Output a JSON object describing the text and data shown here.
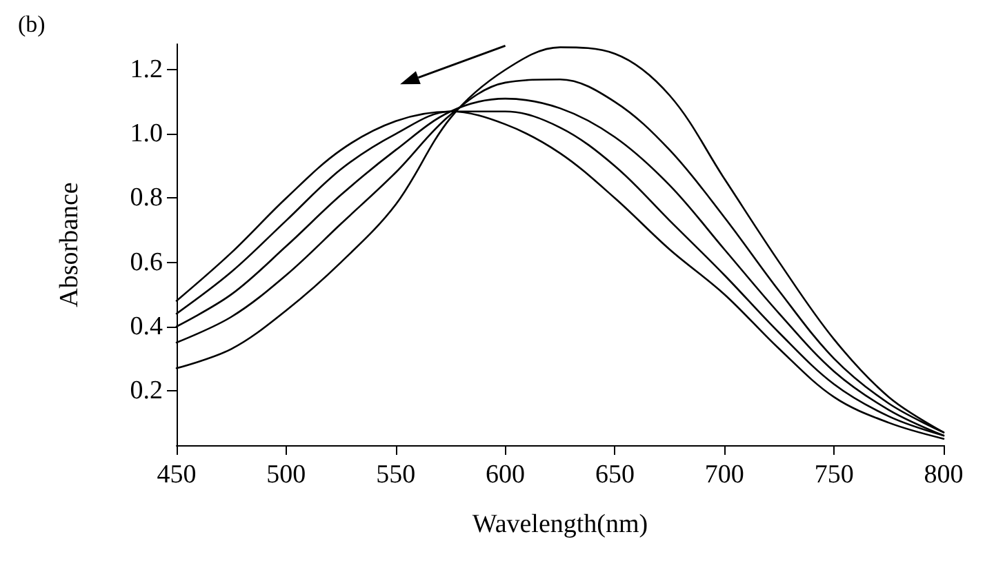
{
  "chart_data": {
    "type": "line",
    "title": "(b)",
    "xlabel": "Wavelength(nm)",
    "ylabel": "Absorbance",
    "x": [
      450,
      475,
      500,
      525,
      550,
      575,
      600,
      625,
      650,
      675,
      700,
      725,
      750,
      775,
      800
    ],
    "series": [
      {
        "color": "#000000",
        "values": [
          0.48,
          0.63,
          0.8,
          0.95,
          1.04,
          1.07,
          1.03,
          0.94,
          0.8,
          0.64,
          0.5,
          0.33,
          0.18,
          0.1,
          0.05
        ]
      },
      {
        "color": "#000000",
        "values": [
          0.44,
          0.57,
          0.73,
          0.89,
          1.0,
          1.07,
          1.07,
          1.02,
          0.9,
          0.73,
          0.56,
          0.38,
          0.22,
          0.12,
          0.06
        ]
      },
      {
        "color": "#000000",
        "values": [
          0.4,
          0.5,
          0.65,
          0.81,
          0.95,
          1.07,
          1.11,
          1.08,
          0.99,
          0.84,
          0.64,
          0.44,
          0.26,
          0.14,
          0.06
        ]
      },
      {
        "color": "#000000",
        "values": [
          0.35,
          0.43,
          0.56,
          0.72,
          0.88,
          1.06,
          1.16,
          1.17,
          1.1,
          0.95,
          0.74,
          0.51,
          0.3,
          0.16,
          0.07
        ]
      },
      {
        "color": "#000000",
        "values": [
          0.27,
          0.33,
          0.45,
          0.6,
          0.78,
          1.05,
          1.2,
          1.27,
          1.25,
          1.12,
          0.86,
          0.6,
          0.36,
          0.18,
          0.07
        ]
      }
    ],
    "xlim": [
      450,
      800
    ],
    "xticks": [
      450,
      500,
      550,
      600,
      650,
      700,
      750,
      800
    ],
    "ylim": [
      0.03,
      1.28
    ],
    "yticks": [
      {
        "value": 0.2,
        "label": "0.2"
      },
      {
        "value": 0.4,
        "label": "0.4"
      },
      {
        "value": 0.6,
        "label": "0.6"
      },
      {
        "value": 0.8,
        "label": "0.8"
      },
      {
        "value": 1,
        "label": "1.0"
      },
      {
        "value": 1.2,
        "label": "1.2"
      }
    ],
    "grid": false,
    "marker": "none",
    "line_style": "solid"
  }
}
